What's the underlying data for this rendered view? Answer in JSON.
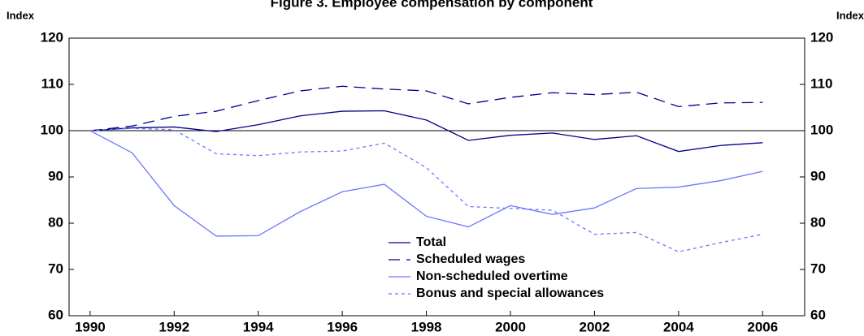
{
  "chart_data": {
    "type": "line",
    "title": "Figure 3. Employee compensation by component",
    "y_label": "Index",
    "y2_label": "Index",
    "x": [
      1990,
      1991,
      1992,
      1993,
      1994,
      1995,
      1996,
      1997,
      1998,
      1999,
      2000,
      2001,
      2002,
      2003,
      2004,
      2005,
      2006
    ],
    "series": [
      {
        "name": "Total",
        "color": "#00008b",
        "dash": "solid",
        "values": [
          100,
          100.6,
          100.8,
          99.8,
          101.3,
          103.2,
          104.2,
          104.3,
          102.3,
          97.9,
          99.0,
          99.5,
          98.1,
          98.9,
          95.5,
          96.8,
          97.4
        ]
      },
      {
        "name": "Scheduled wages",
        "color": "#00008b",
        "dash": "long",
        "values": [
          100,
          101,
          103.1,
          104.2,
          106.5,
          108.6,
          109.6,
          109,
          108.6,
          105.8,
          107.2,
          108.2,
          107.8,
          108.3,
          105.2,
          106,
          106.1
        ]
      },
      {
        "name": "Non-scheduled overtime",
        "color": "#6b78ff",
        "dash": "solid",
        "values": [
          100,
          95.2,
          83.8,
          77.2,
          77.3,
          82.5,
          86.8,
          88.4,
          81.5,
          79.2,
          83.8,
          81.9,
          83.3,
          87.5,
          87.8,
          89.2,
          91.2
        ]
      },
      {
        "name": "Bonus and special allowances",
        "color": "#6b78ff",
        "dash": "short",
        "values": [
          100,
          100.5,
          100.2,
          95,
          94.6,
          95.4,
          95.6,
          97.3,
          92,
          83.6,
          83.2,
          82.8,
          77.6,
          78.0,
          73.8,
          75.8,
          77.6
        ]
      }
    ],
    "xlim": [
      1989.5,
      2007
    ],
    "xticks": [
      1990,
      1992,
      1994,
      1996,
      1998,
      2000,
      2002,
      2004,
      2006
    ],
    "ylim": [
      60,
      120
    ],
    "yticks": [
      60,
      70,
      80,
      90,
      100,
      110,
      120
    ],
    "y2lim": [
      60,
      120
    ],
    "y2ticks": [
      60,
      70,
      80,
      90,
      100,
      110,
      120
    ],
    "reference_line": 100
  }
}
